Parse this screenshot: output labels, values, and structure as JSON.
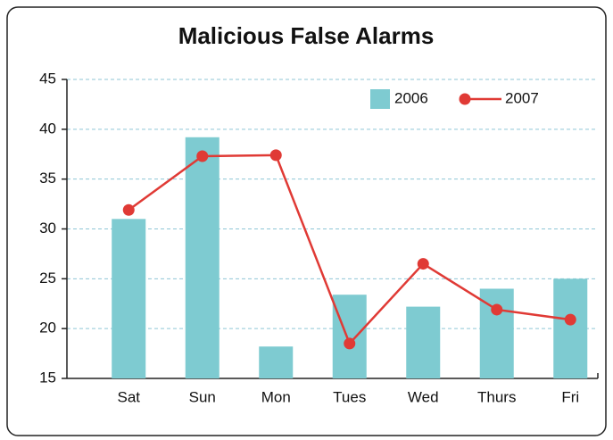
{
  "chart_data": {
    "type": "bar_line",
    "title": "Malicious False Alarms",
    "categories": [
      "Sat",
      "Sun",
      "Mon",
      "Tues",
      "Wed",
      "Thurs",
      "Fri"
    ],
    "series": [
      {
        "name": "2006",
        "type": "bar",
        "color": "#7ecbd1",
        "values": [
          31,
          39.2,
          18.2,
          23.4,
          22.2,
          24,
          25
        ]
      },
      {
        "name": "2007",
        "type": "line",
        "color": "#e03a35",
        "values": [
          31.9,
          37.3,
          37.4,
          18.5,
          26.5,
          21.9,
          20.9
        ]
      }
    ],
    "ylim": [
      15,
      45
    ],
    "yticks": [
      15,
      20,
      25,
      30,
      35,
      40,
      45
    ],
    "grid": true,
    "legend": "top-right"
  }
}
